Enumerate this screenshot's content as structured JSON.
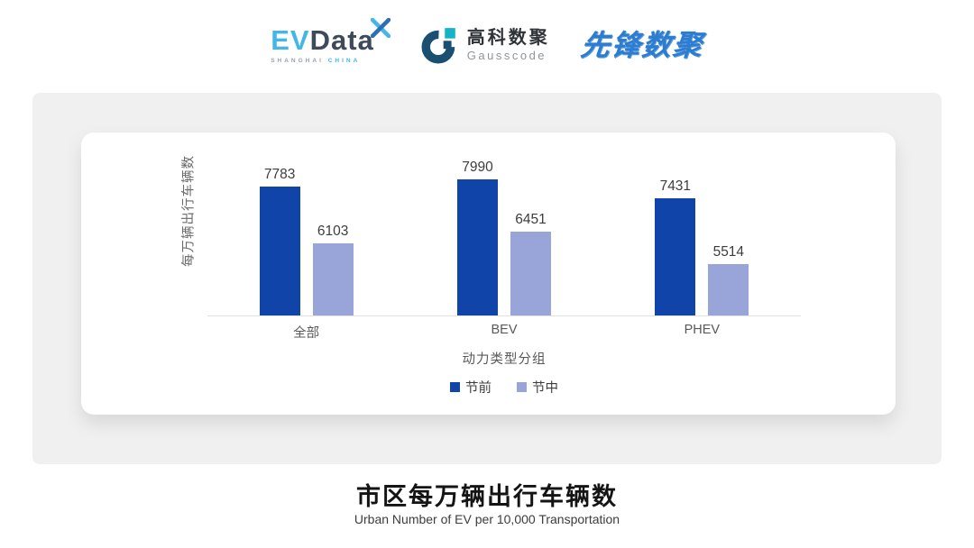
{
  "header": {
    "evdata": {
      "ev": "EV",
      "data": "Data",
      "tagline_left": "SHANGHAI",
      "tagline_right": "CHINA"
    },
    "gausscode": {
      "name_cn": "高科数聚",
      "name_en": "Gausscode"
    },
    "pioneer": {
      "name": "先锋数聚"
    }
  },
  "chart_data": {
    "type": "bar",
    "title": "市区每万辆出行车辆数",
    "subtitle": "Urban Number of EV per 10,000 Transportation",
    "categories": [
      "全部",
      "BEV",
      "PHEV"
    ],
    "series": [
      {
        "name": "节前",
        "color": "#1144a8",
        "values": [
          7783,
          7990,
          7431
        ]
      },
      {
        "name": "节中",
        "color": "#99a4d8",
        "values": [
          6103,
          6451,
          5514
        ]
      }
    ],
    "xlabel": "动力类型分组",
    "ylabel": "每万辆出行车辆数",
    "ylim": [
      4000,
      8800
    ],
    "grid": false,
    "legend_position": "bottom",
    "value_labels": true,
    "axis_line_color": "#e3e3e3"
  }
}
